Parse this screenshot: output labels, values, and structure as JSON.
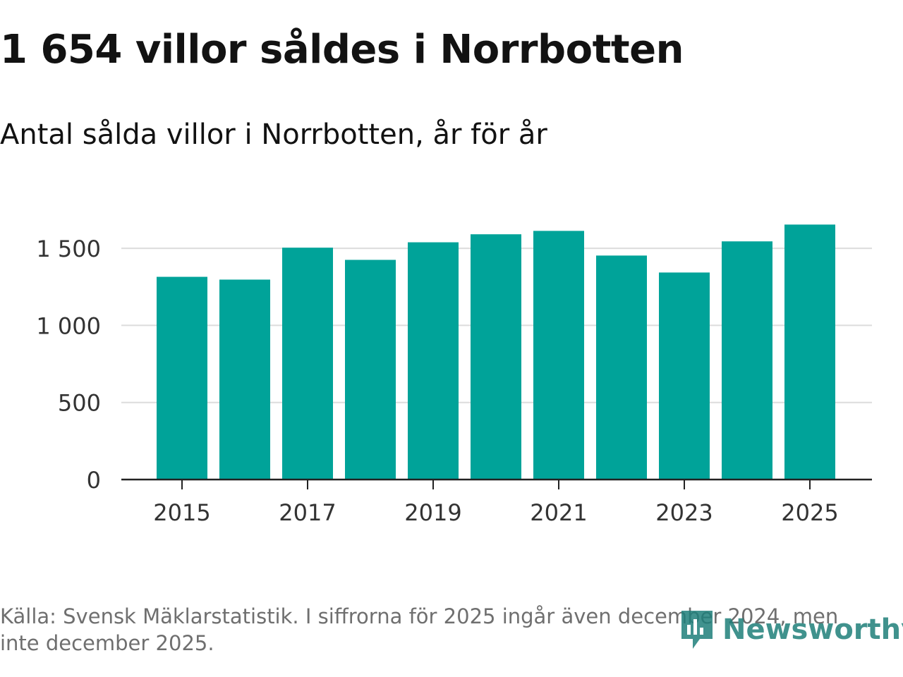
{
  "title": "1 654 villor såldes i Norrbotten",
  "subtitle": "Antal sålda villor i Norrbotten, år för år",
  "footer": {
    "source": "Källa: Svensk Mäklarstatistik. I siffrorna för 2025 ingår även december 2024, men inte december 2025."
  },
  "brand": {
    "name": "Newsworthy",
    "icon": "newsworthy-logo-icon",
    "color": "#1f7f7a"
  },
  "colors": {
    "bar": "#00a399",
    "grid": "#dcdcdc",
    "axis": "#222222"
  },
  "chart_data": {
    "type": "bar",
    "title": "1 654 villor såldes i Norrbotten",
    "subtitle": "Antal sålda villor i Norrbotten, år för år",
    "categories": [
      "2015",
      "2016",
      "2017",
      "2018",
      "2019",
      "2020",
      "2021",
      "2022",
      "2023",
      "2024",
      "2025"
    ],
    "values": [
      1315,
      1297,
      1504,
      1425,
      1539,
      1591,
      1613,
      1453,
      1343,
      1545,
      1654
    ],
    "xlabel": "",
    "ylabel": "",
    "ylim": [
      0,
      1700
    ],
    "yticks": [
      0,
      500,
      1000,
      1500
    ],
    "ytick_labels": [
      "0",
      "500",
      "1 000",
      "1 500"
    ],
    "xtick_labels": [
      "2015",
      "2017",
      "2019",
      "2021",
      "2023",
      "2025"
    ],
    "grid": true,
    "legend": "none"
  }
}
